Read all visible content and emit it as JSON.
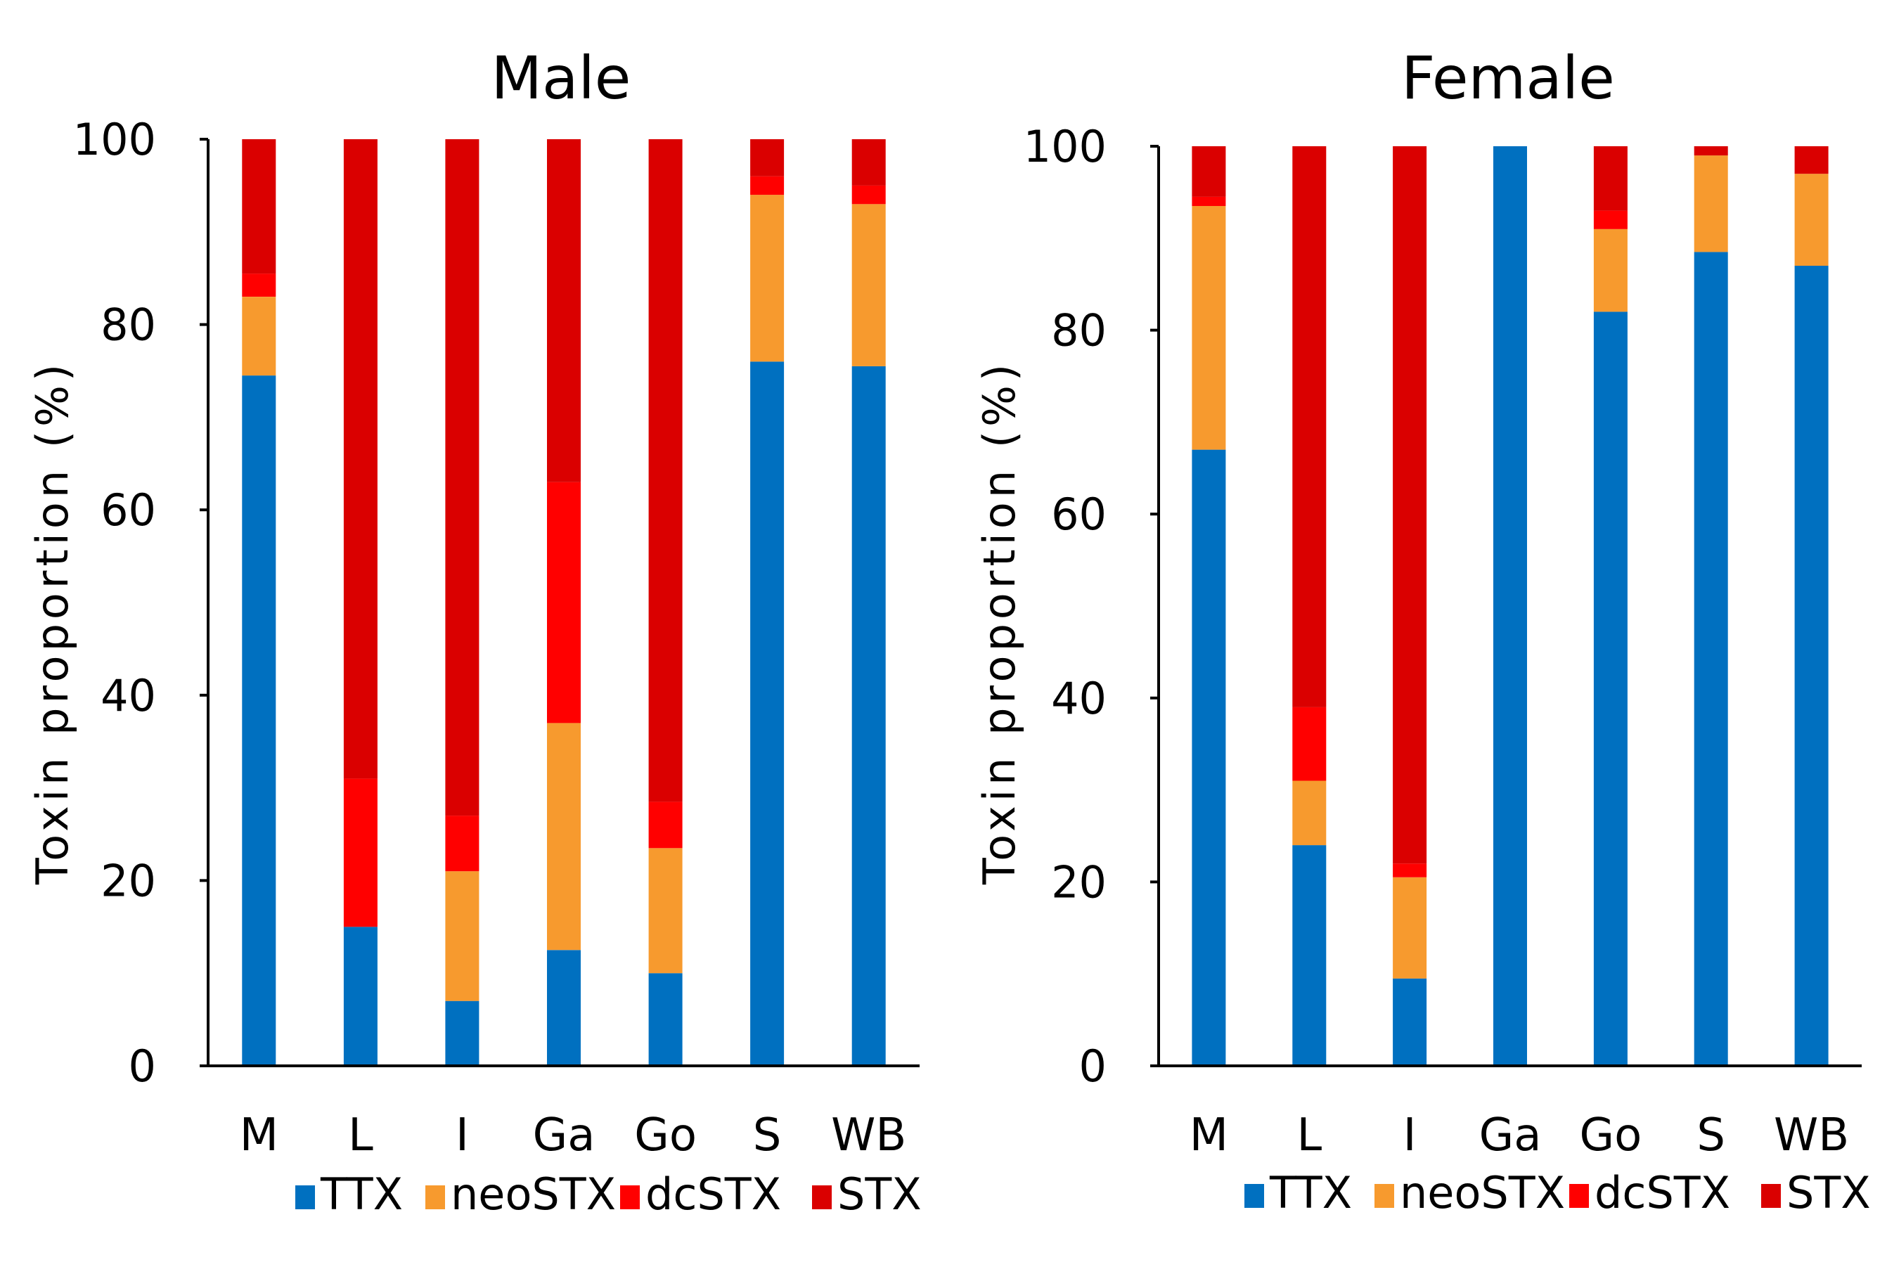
{
  "chart_data": [
    {
      "type": "bar",
      "stacked": true,
      "title": "Male",
      "xlabel": "",
      "ylabel": "Toxin proportion (%)",
      "ylim": [
        0,
        100
      ],
      "yticks": [
        "0",
        "20",
        "40",
        "60",
        "80",
        "100"
      ],
      "categories": [
        "M",
        "L",
        "I",
        "Ga",
        "Go",
        "S",
        "WB"
      ],
      "series": [
        {
          "name": "TTX",
          "color": "#0070C0",
          "values": [
            74.5,
            15,
            7,
            12.5,
            10,
            76,
            75.5
          ]
        },
        {
          "name": "neoSTX",
          "color": "#F79A2E",
          "values": [
            8.5,
            0,
            14,
            24.5,
            13.5,
            18,
            17.5
          ]
        },
        {
          "name": "dcSTX",
          "color": "#FF0000",
          "values": [
            2.5,
            16,
            6,
            26,
            5,
            2,
            2
          ]
        },
        {
          "name": "STX",
          "color": "#DA0000",
          "values": [
            14.5,
            69,
            73,
            37,
            71.5,
            4,
            5
          ]
        }
      ],
      "legend": "bottom"
    },
    {
      "type": "bar",
      "stacked": true,
      "title": "Female",
      "xlabel": "",
      "ylabel": "Toxin proportion (%)",
      "ylim": [
        0,
        100
      ],
      "yticks": [
        "0",
        "20",
        "40",
        "60",
        "80",
        "100"
      ],
      "categories": [
        "M",
        "L",
        "I",
        "Ga",
        "Go",
        "S",
        "WB"
      ],
      "series": [
        {
          "name": "TTX",
          "color": "#0070C0",
          "values": [
            67,
            24,
            9.5,
            100,
            82,
            88.5,
            87
          ]
        },
        {
          "name": "neoSTX",
          "color": "#F79A2E",
          "values": [
            26.5,
            7,
            11,
            0,
            9,
            10.5,
            10
          ]
        },
        {
          "name": "dcSTX",
          "color": "#FF0000",
          "values": [
            1,
            8,
            1.5,
            0,
            2,
            0,
            0
          ]
        },
        {
          "name": "STX",
          "color": "#DA0000",
          "values": [
            5.5,
            61,
            78,
            0,
            7,
            1,
            3
          ]
        }
      ],
      "legend": "bottom"
    }
  ]
}
